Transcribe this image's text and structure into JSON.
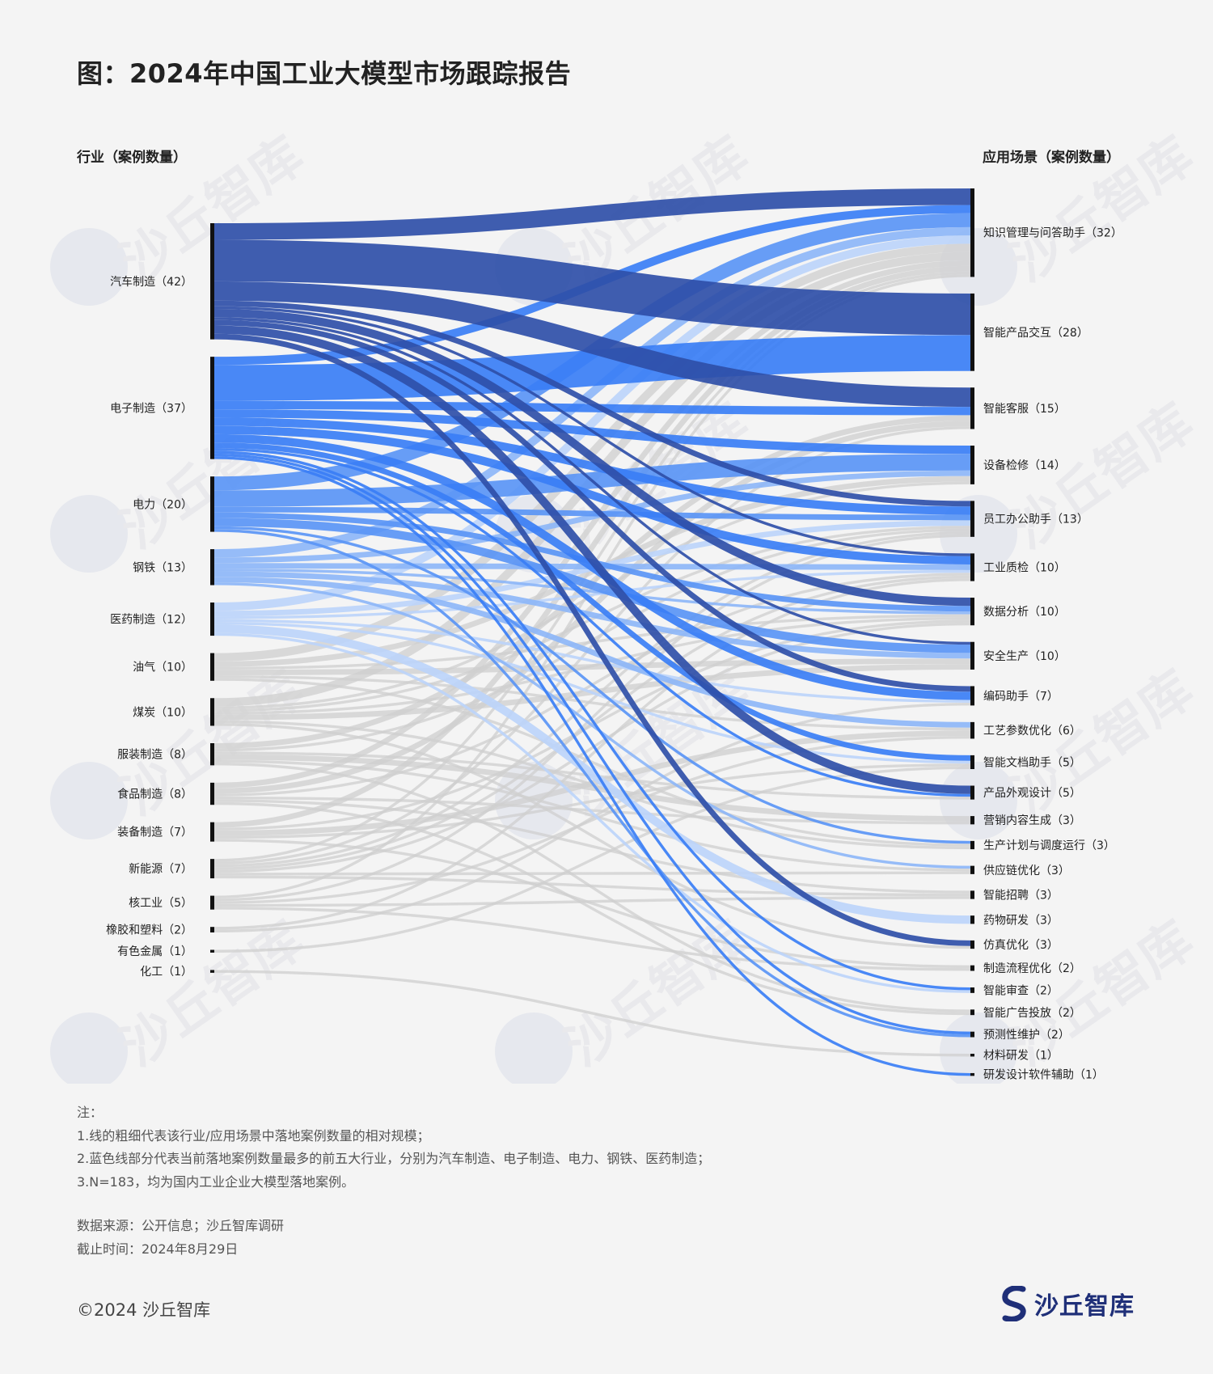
{
  "title": "图：2024年中国工业大模型市场跟踪报告",
  "left_header": "行业（案例数量）",
  "right_header": "应用场景（案例数量）",
  "watermark": "沙丘智库",
  "notes": [
    "注：",
    "1.线的粗细代表该行业/应用场景中落地案例数量的相对规模；",
    "2.蓝色线部分代表当前落地案例数量最多的前五大行业，分别为汽车制造、电子制造、电力、钢铁、医药制造；",
    "3.N=183，均为国内工业企业大模型落地案例。"
  ],
  "source": [
    "数据来源：公开信息；沙丘智库调研",
    "截止时间：2024年8月29日"
  ],
  "copyright": "©2024 沙丘智库",
  "brand": "沙丘智库",
  "colors": {
    "汽车制造": "#2f4fa8",
    "电子制造": "#3a7ef5",
    "电力": "#5a95f5",
    "钢铁": "#8db6f7",
    "医药制造": "#bcd4fa",
    "other": "#cfcfcf"
  },
  "chart_data": {
    "type": "sankey",
    "left_nodes": [
      {
        "name": "汽车制造",
        "label": "汽车制造（42）",
        "value": 42
      },
      {
        "name": "电子制造",
        "label": "电子制造（37）",
        "value": 37
      },
      {
        "name": "电力",
        "label": "电力（20）",
        "value": 20
      },
      {
        "name": "钢铁",
        "label": "钢铁（13）",
        "value": 13
      },
      {
        "name": "医药制造",
        "label": "医药制造（12）",
        "value": 12
      },
      {
        "name": "油气",
        "label": "油气（10）",
        "value": 10
      },
      {
        "name": "煤炭",
        "label": "煤炭（10）",
        "value": 10
      },
      {
        "name": "服装制造",
        "label": "服装制造（8）",
        "value": 8
      },
      {
        "name": "食品制造",
        "label": "食品制造（8）",
        "value": 8
      },
      {
        "name": "装备制造",
        "label": "装备制造（7）",
        "value": 7
      },
      {
        "name": "新能源",
        "label": "新能源（7）",
        "value": 7
      },
      {
        "name": "核工业",
        "label": "核工业（5）",
        "value": 5
      },
      {
        "name": "橡胶和塑料",
        "label": "橡胶和塑料（2）",
        "value": 2
      },
      {
        "name": "有色金属",
        "label": "有色金属（1）",
        "value": 1
      },
      {
        "name": "化工",
        "label": "化工（1）",
        "value": 1
      }
    ],
    "right_nodes": [
      {
        "name": "知识管理与问答助手",
        "label": "知识管理与问答助手（32）",
        "value": 32
      },
      {
        "name": "智能产品交互",
        "label": "智能产品交互（28）",
        "value": 28
      },
      {
        "name": "智能客服",
        "label": "智能客服（15）",
        "value": 15
      },
      {
        "name": "设备检修",
        "label": "设备检修（14）",
        "value": 14
      },
      {
        "name": "员工办公助手",
        "label": "员工办公助手（13）",
        "value": 13
      },
      {
        "name": "工业质检",
        "label": "工业质检（10）",
        "value": 10
      },
      {
        "name": "数据分析",
        "label": "数据分析（10）",
        "value": 10
      },
      {
        "name": "安全生产",
        "label": "安全生产（10）",
        "value": 10
      },
      {
        "name": "编码助手",
        "label": "编码助手（7）",
        "value": 7
      },
      {
        "name": "工艺参数优化",
        "label": "工艺参数优化（6）",
        "value": 6
      },
      {
        "name": "智能文档助手",
        "label": "智能文档助手（5）",
        "value": 5
      },
      {
        "name": "产品外观设计",
        "label": "产品外观设计（5）",
        "value": 5
      },
      {
        "name": "营销内容生成",
        "label": "营销内容生成（3）",
        "value": 3
      },
      {
        "name": "生产计划与调度运行",
        "label": "生产计划与调度运行（3）",
        "value": 3
      },
      {
        "name": "供应链优化",
        "label": "供应链优化（3）",
        "value": 3
      },
      {
        "name": "智能招聘",
        "label": "智能招聘（3）",
        "value": 3
      },
      {
        "name": "药物研发",
        "label": "药物研发（3）",
        "value": 3
      },
      {
        "name": "仿真优化",
        "label": "仿真优化（3）",
        "value": 3
      },
      {
        "name": "制造流程优化",
        "label": "制造流程优化（2）",
        "value": 2
      },
      {
        "name": "智能审查",
        "label": "智能审查（2）",
        "value": 2
      },
      {
        "name": "智能广告投放",
        "label": "智能广告投放（2）",
        "value": 2
      },
      {
        "name": "预测性维护",
        "label": "预测性维护（2）",
        "value": 2
      },
      {
        "name": "材料研发",
        "label": "材料研发（1）",
        "value": 1
      },
      {
        "name": "研发设计软件辅助",
        "label": "研发设计软件辅助（1）",
        "value": 1
      }
    ],
    "links": [
      [
        "汽车制造",
        "知识管理与问答助手",
        6
      ],
      [
        "汽车制造",
        "智能产品交互",
        15
      ],
      [
        "汽车制造",
        "智能客服",
        7
      ],
      [
        "汽车制造",
        "员工办公助手",
        2
      ],
      [
        "汽车制造",
        "数据分析",
        3
      ],
      [
        "汽车制造",
        "编码助手",
        2
      ],
      [
        "汽车制造",
        "产品外观设计",
        3
      ],
      [
        "汽车制造",
        "仿真优化",
        2
      ],
      [
        "汽车制造",
        "工业质检",
        1
      ],
      [
        "汽车制造",
        "安全生产",
        1
      ],
      [
        "电子制造",
        "知识管理与问答助手",
        3
      ],
      [
        "电子制造",
        "智能产品交互",
        13
      ],
      [
        "电子制造",
        "智能客服",
        3
      ],
      [
        "电子制造",
        "设备检修",
        3
      ],
      [
        "电子制造",
        "员工办公助手",
        3
      ],
      [
        "电子制造",
        "工业质检",
        3
      ],
      [
        "电子制造",
        "编码助手",
        3
      ],
      [
        "电子制造",
        "智能文档助手",
        2
      ],
      [
        "电子制造",
        "产品外观设计",
        1
      ],
      [
        "电子制造",
        "智能审查",
        1
      ],
      [
        "电子制造",
        "预测性维护",
        1
      ],
      [
        "电子制造",
        "研发设计软件辅助",
        1
      ],
      [
        "电力",
        "知识管理与问答助手",
        5
      ],
      [
        "电力",
        "设备检修",
        6
      ],
      [
        "电力",
        "员工办公助手",
        2
      ],
      [
        "电力",
        "安全生产",
        3
      ],
      [
        "电力",
        "数据分析",
        2
      ],
      [
        "电力",
        "生产计划与调度运行",
        1
      ],
      [
        "电力",
        "预测性维护",
        1
      ],
      [
        "钢铁",
        "知识管理与问答助手",
        3
      ],
      [
        "钢铁",
        "设备检修",
        2
      ],
      [
        "钢铁",
        "工业质检",
        2
      ],
      [
        "钢铁",
        "安全生产",
        2
      ],
      [
        "钢铁",
        "工艺参数优化",
        2
      ],
      [
        "钢铁",
        "数据分析",
        1
      ],
      [
        "钢铁",
        "供应链优化",
        1
      ],
      [
        "医药制造",
        "知识管理与问答助手",
        3
      ],
      [
        "医药制造",
        "员工办公助手",
        2
      ],
      [
        "医药制造",
        "药物研发",
        3
      ],
      [
        "医药制造",
        "智能文档助手",
        1
      ],
      [
        "医药制造",
        "工业质检",
        1
      ],
      [
        "医药制造",
        "智能审查",
        1
      ],
      [
        "医药制造",
        "编码助手",
        1
      ],
      [
        "油气",
        "知识管理与问答助手",
        3
      ],
      [
        "油气",
        "设备检修",
        2
      ],
      [
        "油气",
        "安全生产",
        2
      ],
      [
        "油气",
        "数据分析",
        1
      ],
      [
        "油气",
        "工艺参数优化",
        1
      ],
      [
        "油气",
        "生产计划与调度运行",
        1
      ],
      [
        "煤炭",
        "知识管理与问答助手",
        3
      ],
      [
        "煤炭",
        "安全生产",
        2
      ],
      [
        "煤炭",
        "设备检修",
        1
      ],
      [
        "煤炭",
        "员工办公助手",
        1
      ],
      [
        "煤炭",
        "数据分析",
        1
      ],
      [
        "煤炭",
        "生产计划与调度运行",
        1
      ],
      [
        "煤炭",
        "仿真优化",
        1
      ],
      [
        "服装制造",
        "智能客服",
        2
      ],
      [
        "服装制造",
        "营销内容生成",
        2
      ],
      [
        "服装制造",
        "产品外观设计",
        1
      ],
      [
        "服装制造",
        "智能广告投放",
        1
      ],
      [
        "服装制造",
        "供应链优化",
        1
      ],
      [
        "服装制造",
        "员工办公助手",
        1
      ],
      [
        "食品制造",
        "知识管理与问答助手",
        2
      ],
      [
        "食品制造",
        "智能客服",
        2
      ],
      [
        "食品制造",
        "营销内容生成",
        1
      ],
      [
        "食品制造",
        "智能广告投放",
        1
      ],
      [
        "食品制造",
        "工业质检",
        1
      ],
      [
        "食品制造",
        "智能招聘",
        1
      ],
      [
        "装备制造",
        "知识管理与问答助手",
        2
      ],
      [
        "装备制造",
        "工艺参数优化",
        2
      ],
      [
        "装备制造",
        "制造流程优化",
        1
      ],
      [
        "装备制造",
        "数据分析",
        1
      ],
      [
        "装备制造",
        "智能文档助手",
        1
      ],
      [
        "新能源",
        "知识管理与问答助手",
        1
      ],
      [
        "新能源",
        "智能客服",
        1
      ],
      [
        "新能源",
        "员工办公助手",
        1
      ],
      [
        "新能源",
        "工业质检",
        1
      ],
      [
        "新能源",
        "智能招聘",
        1
      ],
      [
        "新能源",
        "数据分析",
        1
      ],
      [
        "新能源",
        "供应链优化",
        1
      ],
      [
        "核工业",
        "知识管理与问答助手",
        1
      ],
      [
        "核工业",
        "员工办公助手",
        1
      ],
      [
        "核工业",
        "工艺参数优化",
        1
      ],
      [
        "核工业",
        "制造流程优化",
        1
      ],
      [
        "核工业",
        "智能招聘",
        1
      ],
      [
        "橡胶和塑料",
        "工业质检",
        1
      ],
      [
        "橡胶和塑料",
        "编码助手",
        1
      ],
      [
        "有色金属",
        "智能文档助手",
        1
      ],
      [
        "化工",
        "材料研发",
        1
      ]
    ]
  }
}
